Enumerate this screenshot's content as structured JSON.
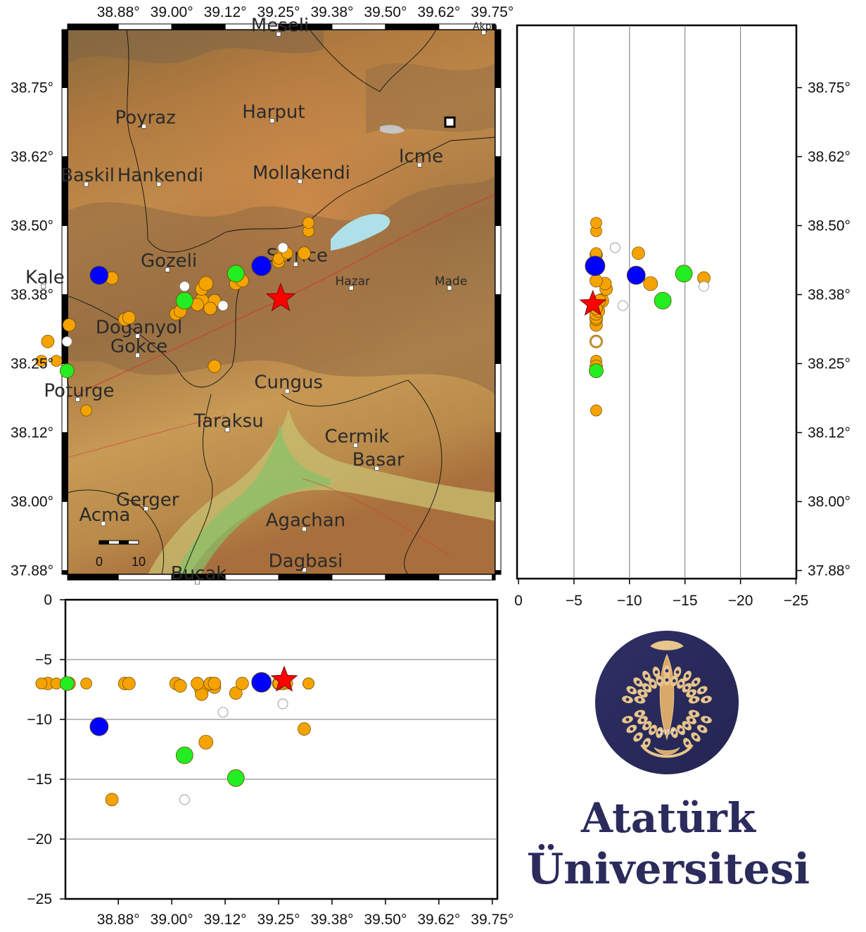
{
  "lon_ticks": [
    "38.88°",
    "39.00°",
    "39.12°",
    "39.25°",
    "39.38°",
    "39.50°",
    "39.62°",
    "39.75°"
  ],
  "lat_ticks": [
    "38.75°",
    "38.62°",
    "38.50°",
    "38.38°",
    "38.25°",
    "38.12°",
    "38.00°",
    "37.88°"
  ],
  "depth_ticks": [
    "0",
    "−5",
    "−10",
    "−15",
    "−20",
    "−25"
  ],
  "scale_bar": {
    "start": "0",
    "end": "10"
  },
  "places": [
    {
      "name": "Meseli",
      "lon": 39.25,
      "lat": 38.847,
      "size": 26
    },
    {
      "name": "Akpa",
      "lon": 39.73,
      "lat": 38.85,
      "size": 14
    },
    {
      "name": "Poyraz",
      "lon": 38.935,
      "lat": 38.68,
      "size": 26
    },
    {
      "name": "Harput",
      "lon": 39.235,
      "lat": 38.69,
      "size": 26
    },
    {
      "name": "Icme",
      "lon": 39.58,
      "lat": 38.61,
      "size": 26
    },
    {
      "name": "Baskil",
      "lon": 38.8,
      "lat": 38.575,
      "size": 26
    },
    {
      "name": "Hankendi",
      "lon": 38.97,
      "lat": 38.575,
      "size": 26
    },
    {
      "name": "Mollakendi",
      "lon": 39.3,
      "lat": 38.58,
      "size": 26
    },
    {
      "name": "Sivrice",
      "lon": 39.29,
      "lat": 38.43,
      "size": 26
    },
    {
      "name": "Gozeli",
      "lon": 38.99,
      "lat": 38.42,
      "size": 26
    },
    {
      "name": "Kale",
      "lon": 38.7,
      "lat": 38.39,
      "size": 26
    },
    {
      "name": "Hazar",
      "lon": 39.42,
      "lat": 38.387,
      "size": 17
    },
    {
      "name": "Made",
      "lon": 39.65,
      "lat": 38.387,
      "size": 17
    },
    {
      "name": "Doganyol",
      "lon": 38.92,
      "lat": 38.3,
      "size": 26
    },
    {
      "name": "Gokce",
      "lon": 38.92,
      "lat": 38.265,
      "size": 26
    },
    {
      "name": "Poturge",
      "lon": 38.78,
      "lat": 38.185,
      "size": 26
    },
    {
      "name": "Cungus",
      "lon": 39.27,
      "lat": 38.2,
      "size": 26
    },
    {
      "name": "Taraksu",
      "lon": 39.13,
      "lat": 38.13,
      "size": 26
    },
    {
      "name": "Cermik",
      "lon": 39.43,
      "lat": 38.102,
      "size": 26
    },
    {
      "name": "Basar",
      "lon": 39.48,
      "lat": 38.06,
      "size": 26
    },
    {
      "name": "Gerger",
      "lon": 38.94,
      "lat": 37.987,
      "size": 26
    },
    {
      "name": "Acma",
      "lon": 38.84,
      "lat": 37.96,
      "size": 26
    },
    {
      "name": "Agachan",
      "lon": 39.31,
      "lat": 37.95,
      "size": 26
    },
    {
      "name": "Dagbasi",
      "lon": 39.31,
      "lat": 37.876,
      "size": 26
    },
    {
      "name": "Bucak",
      "lon": 39.06,
      "lat": 37.854,
      "size": 26
    }
  ],
  "events": [
    {
      "lon": 38.83,
      "lat": 38.41,
      "depth": -10.6,
      "color": "#0000ff",
      "size": 13
    },
    {
      "lon": 39.21,
      "lat": 38.427,
      "depth": -6.9,
      "color": "#0000ff",
      "size": 14
    },
    {
      "lon": 39.03,
      "lat": 38.364,
      "depth": -13.0,
      "color": "#22ee22",
      "size": 12
    },
    {
      "lon": 39.15,
      "lat": 38.413,
      "depth": -14.9,
      "color": "#22ee22",
      "size": 12
    },
    {
      "lon": 38.755,
      "lat": 38.237,
      "depth": -7.0,
      "color": "#22ee22",
      "size": 10
    },
    {
      "lon": 38.86,
      "lat": 38.405,
      "depth": -16.7,
      "color": "#f5a300",
      "size": 9
    },
    {
      "lon": 38.76,
      "lat": 38.32,
      "depth": -7.0,
      "color": "#f5a300",
      "size": 9
    },
    {
      "lon": 38.71,
      "lat": 38.29,
      "depth": -7.0,
      "color": "#f5a300",
      "size": 9
    },
    {
      "lon": 38.695,
      "lat": 38.255,
      "depth": -7.0,
      "color": "#f5a300",
      "size": 8
    },
    {
      "lon": 38.73,
      "lat": 38.255,
      "depth": -7.0,
      "color": "#f5a300",
      "size": 8
    },
    {
      "lon": 38.8,
      "lat": 38.165,
      "depth": -7.0,
      "color": "#f5a300",
      "size": 8
    },
    {
      "lon": 38.89,
      "lat": 38.33,
      "depth": -7.0,
      "color": "#f5a300",
      "size": 9
    },
    {
      "lon": 38.9,
      "lat": 38.333,
      "depth": -7.0,
      "color": "#f5a300",
      "size": 9
    },
    {
      "lon": 39.01,
      "lat": 38.34,
      "depth": -7.0,
      "color": "#f5a300",
      "size": 9
    },
    {
      "lon": 39.02,
      "lat": 38.345,
      "depth": -7.2,
      "color": "#f5a300",
      "size": 9
    },
    {
      "lon": 39.07,
      "lat": 38.364,
      "depth": -7.5,
      "color": "#f5a300",
      "size": 10
    },
    {
      "lon": 39.07,
      "lat": 38.385,
      "depth": -7.9,
      "color": "#f5a300",
      "size": 9
    },
    {
      "lon": 39.08,
      "lat": 38.395,
      "depth": -11.9,
      "color": "#f5a300",
      "size": 10
    },
    {
      "lon": 39.06,
      "lat": 38.357,
      "depth": -7.0,
      "color": "#f5a300",
      "size": 9
    },
    {
      "lon": 39.1,
      "lat": 38.364,
      "depth": -7.3,
      "color": "#f5a300",
      "size": 9
    },
    {
      "lon": 39.09,
      "lat": 38.35,
      "depth": -7.0,
      "color": "#f5a300",
      "size": 9
    },
    {
      "lon": 39.15,
      "lat": 38.395,
      "depth": -7.8,
      "color": "#f5a300",
      "size": 9
    },
    {
      "lon": 39.165,
      "lat": 38.4,
      "depth": -7.0,
      "color": "#f5a300",
      "size": 9
    },
    {
      "lon": 39.25,
      "lat": 38.435,
      "depth": -7.0,
      "color": "#f5a300",
      "size": 9
    },
    {
      "lon": 39.26,
      "lat": 38.447,
      "depth": -7.0,
      "color": "#f5a300",
      "size": 9
    },
    {
      "lon": 39.25,
      "lat": 38.44,
      "depth": -7.0,
      "color": "#f5a300",
      "size": 8
    },
    {
      "lon": 39.27,
      "lat": 38.45,
      "depth": -7.0,
      "color": "#f5a300",
      "size": 8
    },
    {
      "lon": 39.32,
      "lat": 38.49,
      "depth": -7.0,
      "color": "#f5a300",
      "size": 8
    },
    {
      "lon": 39.32,
      "lat": 38.505,
      "depth": -7.0,
      "color": "#f5a300",
      "size": 8
    },
    {
      "lon": 39.31,
      "lat": 38.45,
      "depth": -10.8,
      "color": "#f5a300",
      "size": 9
    },
    {
      "lon": 39.1,
      "lat": 38.245,
      "depth": -7.0,
      "color": "#f5a300",
      "size": 9
    },
    {
      "lon": 39.26,
      "lat": 38.46,
      "depth": -8.7,
      "color": "#ffffff",
      "size": 7
    },
    {
      "lon": 39.03,
      "lat": 38.39,
      "depth": -16.7,
      "color": "#ffffff",
      "size": 7
    },
    {
      "lon": 39.12,
      "lat": 38.355,
      "depth": -9.4,
      "color": "#ffffff",
      "size": 7
    },
    {
      "lon": 38.755,
      "lat": 38.29,
      "depth": -7.0,
      "color": "#ffffff",
      "size": 7
    }
  ],
  "mainshock": {
    "lon": 39.255,
    "lat": 38.368,
    "depth": -6.7
  },
  "logo": {
    "line1": "Atatürk",
    "line2": "Üniversitesi",
    "year": "1957"
  }
}
